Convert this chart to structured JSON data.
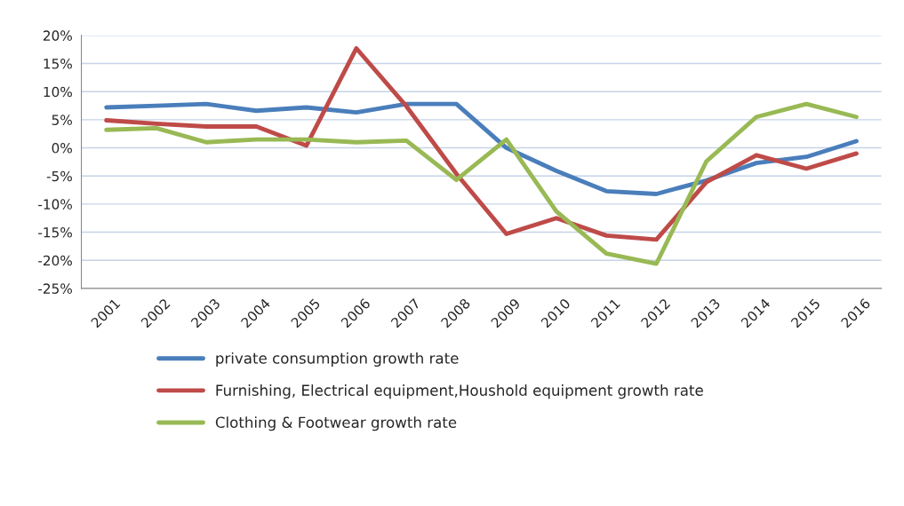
{
  "chart_data": {
    "type": "line",
    "categories": [
      "2001",
      "2002",
      "2003",
      "2004",
      "2005",
      "2006",
      "2007",
      "2008",
      "2009",
      "2010",
      "2011",
      "2012",
      "2013",
      "2014",
      "2015",
      "2016"
    ],
    "series": [
      {
        "name": "private consumption growth rate",
        "color": "#4a7ebb",
        "values": [
          7.2,
          7.5,
          7.8,
          6.6,
          7.2,
          6.3,
          7.8,
          7.8,
          0,
          -4.1,
          -7.7,
          -8.2,
          -5.8,
          -2.7,
          -1.6,
          1.2
        ]
      },
      {
        "name": "Furnishing, Electrical equipment,Houshold equipment growth rate",
        "color": "#be4b48",
        "values": [
          4.9,
          4.3,
          3.8,
          3.8,
          0.4,
          17.7,
          7.4,
          -4.6,
          -15.3,
          -12.5,
          -15.6,
          -16.3,
          -6.1,
          -1.3,
          -3.7,
          -1.0
        ]
      },
      {
        "name": "Clothing & Footwear growth rate",
        "color": "#98b954",
        "values": [
          3.2,
          3.5,
          1.0,
          1.5,
          1.5,
          1.0,
          1.3,
          -5.7,
          1.5,
          -11.3,
          -18.8,
          -20.6,
          -2.4,
          5.5,
          7.8,
          5.5
        ]
      }
    ],
    "ylim": [
      -25,
      20
    ],
    "yticks": [
      {
        "value": -25,
        "label": "-25%"
      },
      {
        "value": -20,
        "label": "-20%"
      },
      {
        "value": -15,
        "label": "-15%"
      },
      {
        "value": -10,
        "label": "-10%"
      },
      {
        "value": -5,
        "label": "-5%"
      },
      {
        "value": 0,
        "label": "0%"
      },
      {
        "value": 5,
        "label": "5%"
      },
      {
        "value": 10,
        "label": "10%"
      },
      {
        "value": 15,
        "label": "15%"
      },
      {
        "value": 20,
        "label": "20%"
      }
    ],
    "grid": "y",
    "legend": "bottom",
    "marker": "none",
    "line_style": "solid"
  }
}
